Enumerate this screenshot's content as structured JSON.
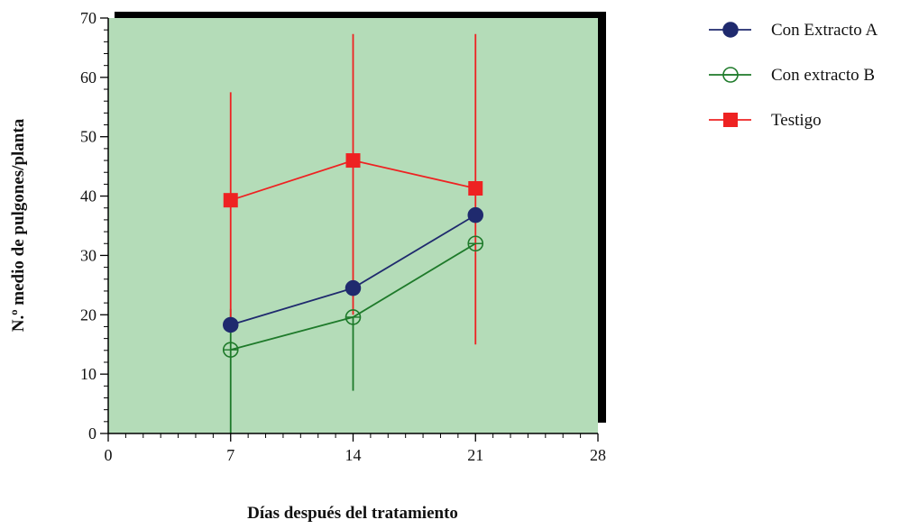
{
  "chart_data": {
    "type": "line",
    "title": "",
    "xlabel": "Días después del tratamiento",
    "ylabel": "N.º medio de pulgones/planta",
    "xlim": [
      0,
      28
    ],
    "ylim": [
      0,
      70
    ],
    "x_ticks": [
      0,
      7,
      14,
      21,
      28
    ],
    "y_ticks": [
      0,
      10,
      20,
      30,
      40,
      50,
      60,
      70
    ],
    "grid": false,
    "legend_position": "top-right",
    "plot_background": "#b4dcb8",
    "series": [
      {
        "name": "Con Extracto A",
        "color": "#1f2a6e",
        "marker": "filled-circle",
        "x": [
          7,
          14,
          21
        ],
        "y": [
          18.3,
          24.5,
          36.8
        ],
        "error_low": [],
        "error_high": []
      },
      {
        "name": "Con extracto B",
        "color": "#1e7a2a",
        "marker": "open-circle",
        "x": [
          7,
          14,
          21
        ],
        "y": [
          14.1,
          19.6,
          32.0
        ],
        "error_low": [
          0,
          7.2,
          null
        ],
        "error_high": [
          21,
          null,
          null
        ]
      },
      {
        "name": "Testigo",
        "color": "#ee2222",
        "marker": "square",
        "x": [
          7,
          14,
          21
        ],
        "y": [
          39.3,
          46.0,
          41.3
        ],
        "error_low": [
          18,
          20,
          15
        ],
        "error_high": [
          57.5,
          67.3,
          67.3
        ]
      }
    ]
  }
}
